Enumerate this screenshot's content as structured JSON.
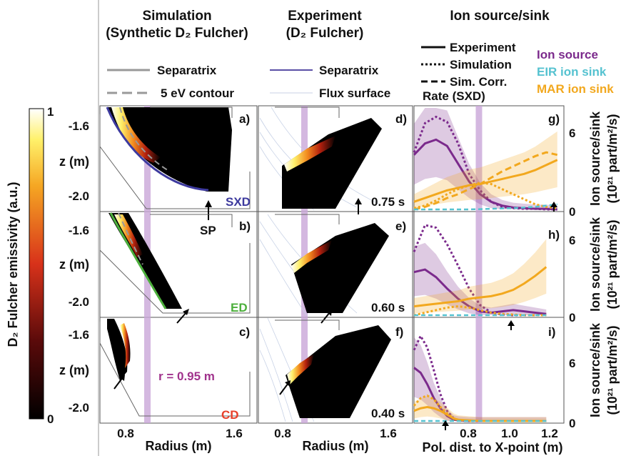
{
  "headers": {
    "col1_title": "Simulation",
    "col1_sub": "(Synthetic D₂ Fulcher)",
    "col2_title": "Experiment",
    "col2_sub": "(D₂ Fulcher)",
    "col3_title": "Ion source/sink"
  },
  "legend_left": {
    "separatrix": "Separatrix",
    "contour": "5 eV contour",
    "separatrix2": "Separatrix",
    "flux": "Flux surface"
  },
  "legend_right": {
    "experiment": "Experiment",
    "simulation": "Simulation",
    "simcorr1": "Sim. Corr.",
    "simcorr2": "Rate (SXD)",
    "ion_source": "Ion source",
    "eir": "EIR ion sink",
    "mar": "MAR ion sink"
  },
  "colorbar": {
    "label": "D₂ Fulcher emissivity (a.u.)",
    "max": "1",
    "min": "0"
  },
  "colors": {
    "ion_source": "#7b2a8c",
    "eir": "#55c2d0",
    "mar": "#f2a81e",
    "sxd": "#3d3a9e",
    "ed": "#4caf3c",
    "cd": "#e8402a",
    "band": "#c9a6d8"
  },
  "panels": {
    "a": "a)",
    "b": "b)",
    "c": "c)",
    "d": "d)",
    "e": "e)",
    "f": "f)",
    "g": "g)",
    "h": "h)",
    "i": "i)",
    "sxd": "SXD",
    "ed": "ED",
    "cd": "CD",
    "sp": "SP",
    "r": "r = 0.95 m",
    "t1": "0.75 s",
    "t2": "0.60 s",
    "t3": "0.40 s"
  },
  "axes": {
    "z_label": "z (m)",
    "z_ticks": [
      "-1.6",
      "-2.0"
    ],
    "r_label": "Radius (m)",
    "r_ticks": [
      "0.8",
      "1.6"
    ],
    "pol_label": "Pol. dist. to X-point (m)",
    "pol_ticks": [
      "0.8",
      "1.0",
      "1.2"
    ],
    "y_ticks": [
      "6",
      "0"
    ],
    "y_label1": "Ion source/sink",
    "y_label2": "(10²¹ part/m²/s)"
  },
  "chart_data": [
    {
      "type": "line",
      "panel": "g",
      "xlabel": "Pol. dist. to X-point (m)",
      "ylabel": "Ion source/sink (10²¹ part/m²/s)",
      "xlim": [
        0.6,
        1.28
      ],
      "ylim": [
        0,
        8
      ],
      "x": [
        0.6,
        0.65,
        0.7,
        0.75,
        0.8,
        0.85,
        0.9,
        0.95,
        1.0,
        1.05,
        1.1,
        1.15,
        1.2,
        1.25
      ],
      "series": [
        {
          "name": "Ion source",
          "values": [
            4.3,
            5.2,
            5.5,
            5.0,
            3.6,
            2.2,
            1.2,
            0.6,
            0.3,
            0.15,
            0.1,
            0.05,
            0.05,
            0.0
          ]
        },
        {
          "name": "Ion source",
          "values": [
            4.5,
            6.8,
            7.3,
            6.9,
            5.2,
            2.8,
            1.5,
            0.6,
            0.2,
            0.1,
            0.05,
            0.05,
            0.0,
            0.0
          ]
        },
        {
          "name": "MAR ion sink",
          "values": [
            0.6,
            0.9,
            1.2,
            1.5,
            1.7,
            1.9,
            2.0,
            2.2,
            2.4,
            2.6,
            2.8,
            3.1,
            3.5,
            3.9
          ]
        },
        {
          "name": "MAR ion sink",
          "values": [
            0.1,
            0.3,
            0.7,
            1.2,
            1.6,
            1.9,
            2.1,
            2.0,
            1.6,
            1.2,
            0.8,
            0.4,
            0.2,
            0.1
          ]
        },
        {
          "name": "MAR ion sink",
          "values": [
            0.0,
            0.2,
            0.5,
            0.9,
            1.2,
            1.6,
            2.0,
            2.5,
            3.0,
            3.4,
            3.8,
            4.2,
            4.5,
            4.3
          ]
        },
        {
          "name": "EIR ion sink",
          "values": [
            0.0,
            0.0,
            0.0,
            0.0,
            0.0,
            0.0,
            0.02,
            0.05,
            0.08,
            0.1,
            0.15,
            0.2,
            0.3,
            0.4
          ]
        }
      ]
    },
    {
      "type": "line",
      "panel": "h",
      "xlabel": "Pol. dist. to X-point (m)",
      "ylabel": "Ion source/sink (10²¹ part/m²/s)",
      "xlim": [
        0.6,
        1.28
      ],
      "ylim": [
        0,
        8
      ],
      "x": [
        0.6,
        0.65,
        0.7,
        0.75,
        0.8,
        0.85,
        0.9,
        0.95,
        1.0,
        1.05,
        1.1,
        1.15,
        1.2
      ],
      "series": [
        {
          "name": "Ion source",
          "values": [
            3.4,
            3.6,
            3.0,
            2.1,
            1.3,
            0.7,
            0.3,
            0.2,
            0.3,
            0.4,
            0.3,
            0.2,
            0.1
          ]
        },
        {
          "name": "Ion source",
          "values": [
            5.0,
            7.1,
            6.9,
            5.6,
            3.9,
            2.1,
            0.8,
            0.2,
            0.05,
            0.0,
            0.0,
            0.0,
            0.0
          ]
        },
        {
          "name": "MAR ion sink",
          "values": [
            0.7,
            0.8,
            0.9,
            1.0,
            1.1,
            1.3,
            1.4,
            1.5,
            1.7,
            2.0,
            2.5,
            3.1,
            3.8
          ]
        },
        {
          "name": "MAR ion sink",
          "values": [
            0.0,
            0.2,
            0.4,
            0.6,
            0.7,
            0.6,
            0.4,
            0.2,
            0.1,
            0.05,
            0.0,
            0.0,
            0.0
          ]
        },
        {
          "name": "EIR ion sink",
          "values": [
            0.0,
            0.0,
            0.0,
            0.0,
            0.0,
            0.0,
            0.0,
            0.0,
            0.0,
            0.0,
            0.0,
            0.0,
            0.0
          ]
        }
      ]
    },
    {
      "type": "line",
      "panel": "i",
      "xlabel": "Pol. dist. to X-point (m)",
      "ylabel": "Ion source/sink (10²¹ part/m²/s)",
      "xlim": [
        0.6,
        1.28
      ],
      "ylim": [
        0,
        8
      ],
      "x": [
        0.6,
        0.63,
        0.66,
        0.69,
        0.72,
        0.75,
        0.78,
        0.8,
        0.85,
        0.9,
        0.95,
        1.0,
        1.05,
        1.1,
        1.15,
        1.2
      ],
      "series": [
        {
          "name": "Ion source",
          "values": [
            4.2,
            3.8,
            2.9,
            1.8,
            1.0,
            0.4,
            0.1,
            0.05,
            0.0,
            0.0,
            0.0,
            0.0,
            0.0,
            0.0,
            0.0,
            0.0
          ]
        },
        {
          "name": "Ion source",
          "values": [
            5.6,
            6.7,
            5.8,
            4.0,
            2.1,
            0.8,
            0.2,
            0.05,
            0.0,
            0.0,
            0.0,
            0.0,
            0.0,
            0.0,
            0.0,
            0.0
          ]
        },
        {
          "name": "MAR ion sink",
          "values": [
            0.8,
            1.0,
            1.1,
            1.0,
            0.8,
            0.5,
            0.2,
            0.1,
            0.05,
            0.0,
            0.0,
            0.0,
            0.0,
            0.0,
            0.0,
            0.0
          ]
        },
        {
          "name": "MAR ion sink",
          "values": [
            1.2,
            1.8,
            2.0,
            1.7,
            1.1,
            0.6,
            0.2,
            0.1,
            0.0,
            0.0,
            0.0,
            0.0,
            0.0,
            0.0,
            0.0,
            0.0
          ]
        },
        {
          "name": "EIR ion sink",
          "values": [
            0.0,
            0.0,
            0.0,
            0.0,
            0.0,
            0.0,
            0.0,
            0.0,
            0.0,
            0.0,
            0.0,
            0.0,
            0.0,
            0.0,
            0.0,
            0.0
          ]
        }
      ]
    }
  ]
}
